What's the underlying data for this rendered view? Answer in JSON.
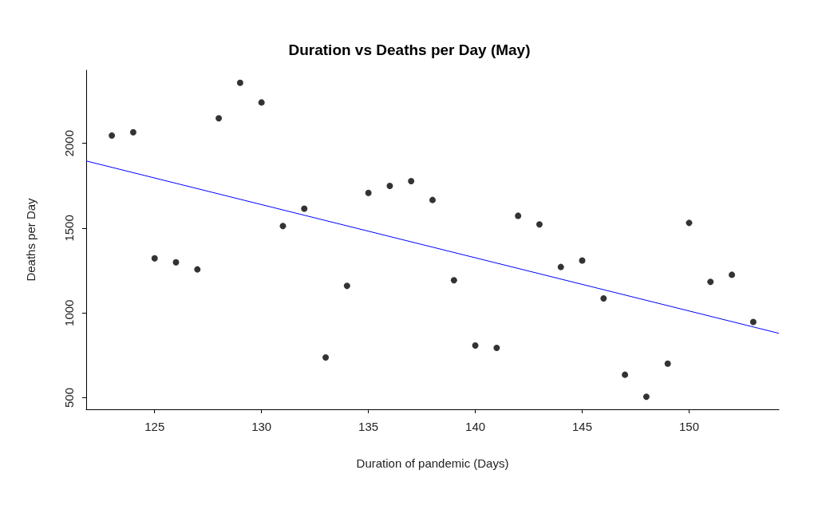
{
  "chart_data": {
    "type": "scatter",
    "title": "Duration vs Deaths per Day (May)",
    "xlabel": "Duration of pandemic (Days)",
    "ylabel": "Deaths per Day",
    "grid": false,
    "xlim": [
      121.8,
      154.2
    ],
    "xticks": [
      125,
      130,
      135,
      140,
      145,
      150
    ],
    "ylim": [
      432,
      2431
    ],
    "yticks": [
      500,
      1000,
      1500,
      2000
    ],
    "series": [
      {
        "marker": "circle",
        "color": "#000000",
        "x": [
          123,
          124,
          125,
          126,
          127,
          128,
          129,
          130,
          131,
          132,
          133,
          134,
          135,
          136,
          137,
          138,
          139,
          140,
          141,
          142,
          143,
          144,
          145,
          146,
          147,
          148,
          149,
          150,
          151,
          152,
          153
        ],
        "values": [
          2046,
          2065,
          1322,
          1299,
          1257,
          2148,
          2357,
          2241,
          1513,
          1615,
          738,
          1160,
          1708,
          1749,
          1777,
          1666,
          1193,
          808,
          794,
          1573,
          1522,
          1271,
          1309,
          1086,
          636,
          506,
          701,
          1531,
          1183,
          1225,
          947
        ]
      },
      {
        "type": "line",
        "color": "#0000ff",
        "x": [
          121.8,
          154.2
        ],
        "values": [
          1896,
          880
        ]
      }
    ]
  }
}
